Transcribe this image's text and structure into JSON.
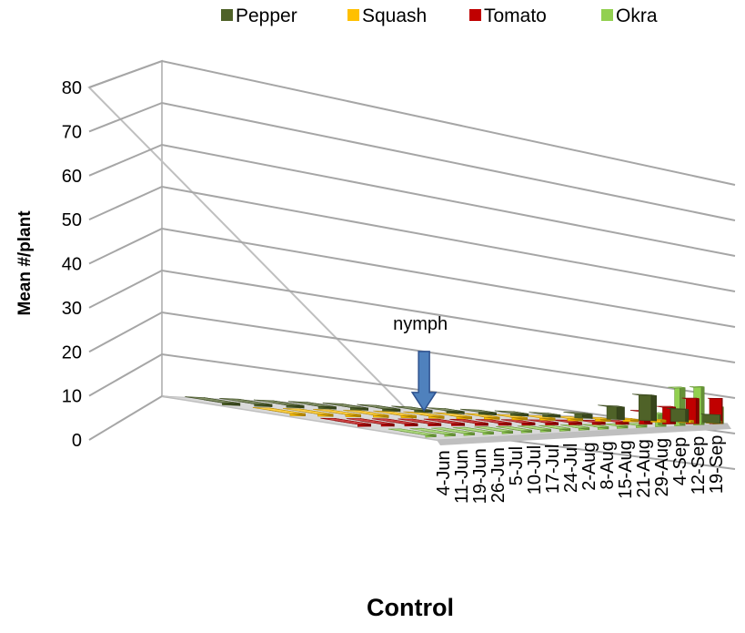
{
  "chart_data": {
    "type": "bar",
    "title": "",
    "xlabel": "Control",
    "ylabel": "Mean #/plant",
    "ylim": [
      0,
      80
    ],
    "yticks": [
      0,
      10,
      20,
      30,
      40,
      50,
      60,
      70,
      80
    ],
    "categories": [
      "4-Jun",
      "11-Jun",
      "19-Jun",
      "26-Jun",
      "5-Jul",
      "10-Jul",
      "17-Jul",
      "24-Jul",
      "2-Aug",
      "8-Aug",
      "15-Aug",
      "21-Aug",
      "29-Aug",
      "4-Sep",
      "12-Sep",
      "19-Sep"
    ],
    "series": [
      {
        "name": "Pepper",
        "color": "#4f6228",
        "values": [
          0,
          0,
          0,
          0,
          0,
          0,
          0,
          0,
          0,
          0,
          0,
          1,
          3,
          6,
          3,
          2
        ]
      },
      {
        "name": "Squash",
        "color": "#ffc000",
        "values": [
          0,
          0,
          0,
          0,
          0,
          0.5,
          0,
          0,
          0,
          0,
          0,
          0,
          0,
          0,
          0,
          0.3
        ]
      },
      {
        "name": "Tomato",
        "color": "#c00000",
        "values": [
          0,
          0,
          0,
          0,
          0,
          0,
          0,
          0,
          0,
          0,
          0,
          0,
          3,
          4,
          6,
          6
        ]
      },
      {
        "name": "Okra",
        "color": "#92d050",
        "values": [
          0,
          0,
          0,
          0,
          0,
          0,
          0,
          0,
          0,
          0,
          0,
          0,
          3,
          9,
          9,
          4
        ]
      }
    ],
    "legend": "top",
    "grid": true,
    "annotations": [
      {
        "text": "nymph",
        "category": "10-Jul",
        "series": "Squash"
      }
    ]
  }
}
